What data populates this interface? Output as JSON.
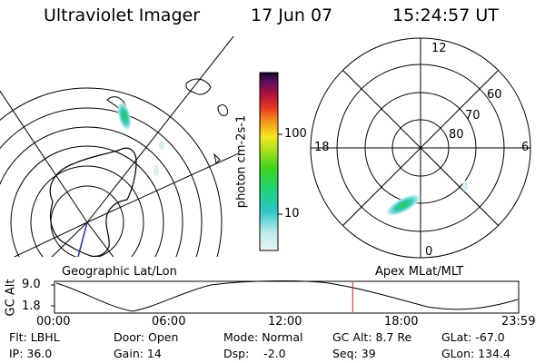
{
  "header": {
    "instrument": "Ultraviolet Imager",
    "date": "17 Jun 07",
    "time": "15:24:57 UT"
  },
  "colorbar": {
    "unit_label": "photon cm-2s-1",
    "ticks": [
      "100",
      "10"
    ]
  },
  "geo_panel": {
    "caption": "Geographic Lat/Lon"
  },
  "mag_panel": {
    "caption": "Apex MLat/MLT",
    "mlt_labels": {
      "top": "12",
      "left": "18",
      "right": "6",
      "bottom": "0"
    },
    "mlat_labels": [
      "60",
      "70",
      "80"
    ]
  },
  "timeline": {
    "y_axis_label": "GC Alt",
    "y_ticks": [
      "9.0",
      "1.8"
    ],
    "x_ticks": [
      "00:00",
      "06:00",
      "12:00",
      "18:00",
      "23:59"
    ],
    "current_time_hours": 15.42
  },
  "status": {
    "filter": "Flt: LBHL",
    "door": "Door: Open",
    "mode": "Mode: Normal",
    "gc_alt": "GC Alt: 8.7 Re",
    "glat": "GLat: -67.0",
    "ip": "IP: 36.0",
    "gain": "Gain: 14",
    "dsp": "Dsp:    -2.0",
    "seq": "Seq: 39",
    "glon": "GLon: 134.4"
  },
  "colors": {
    "marker": "#cc2222",
    "trace": "#2233aa"
  }
}
